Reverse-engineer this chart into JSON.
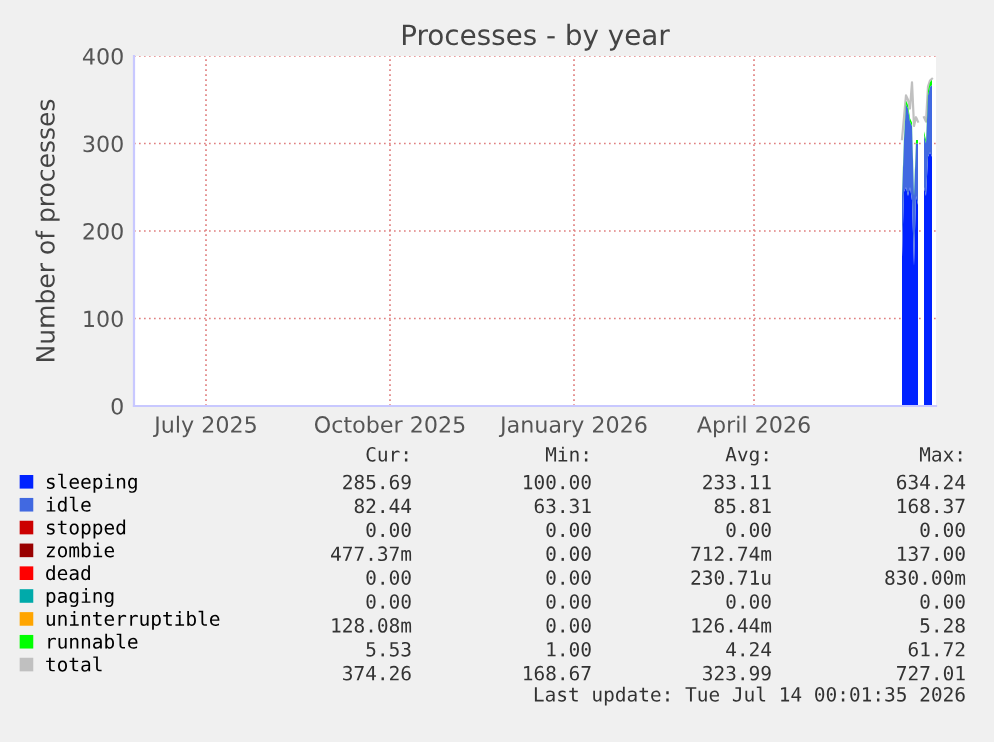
{
  "chart_data": {
    "type": "area",
    "stacked": true,
    "title": "Processes - by year",
    "ylabel": "Number of processes",
    "x": [
      "2026-06-14",
      "2026-06-15",
      "2026-06-16",
      "2026-06-17",
      "2026-06-18",
      "2026-06-19",
      "2026-06-20",
      "2026-06-21",
      "2026-06-22",
      "2026-06-23",
      "2026-06-24",
      "2026-06-25",
      "2026-06-26",
      "2026-06-27",
      "2026-06-28",
      "2026-06-29"
    ],
    "series": [
      {
        "name": "sleeping",
        "color": "#0022ff",
        "values": [
          170,
          245,
          250,
          240,
          250,
          235,
          160,
          240,
          230,
          null,
          null,
          250,
          240,
          285,
          290,
          285
        ]
      },
      {
        "name": "idle",
        "color": "#4169e1",
        "values": [
          70,
          60,
          95,
          100,
          75,
          85,
          80,
          60,
          70,
          null,
          null,
          60,
          60,
          70,
          75,
          82
        ]
      },
      {
        "name": "stopped",
        "color": "#cc0000",
        "values": [
          null,
          null,
          null,
          null,
          null,
          null,
          null,
          null,
          null,
          null,
          null,
          null,
          null,
          null,
          null,
          null
        ]
      },
      {
        "name": "zombie",
        "color": "#990000",
        "values": [
          null,
          null,
          null,
          null,
          null,
          null,
          null,
          null,
          null,
          null,
          null,
          null,
          null,
          null,
          null,
          null
        ]
      },
      {
        "name": "dead",
        "color": "#ff0000",
        "values": [
          null,
          null,
          null,
          null,
          null,
          null,
          null,
          null,
          null,
          null,
          null,
          null,
          null,
          null,
          null,
          null
        ]
      },
      {
        "name": "paging",
        "color": "#00aaaa",
        "values": [
          null,
          null,
          null,
          null,
          null,
          null,
          null,
          null,
          null,
          null,
          null,
          null,
          null,
          null,
          null,
          null
        ]
      },
      {
        "name": "uninterruptible",
        "color": "#ffa500",
        "values": [
          null,
          null,
          null,
          null,
          null,
          null,
          null,
          null,
          null,
          null,
          null,
          null,
          null,
          null,
          null,
          null
        ]
      },
      {
        "name": "runnable",
        "color": "#00ff00",
        "values": [
          4,
          4,
          4,
          4,
          4,
          4,
          4,
          4,
          4,
          null,
          null,
          4,
          4,
          5,
          5,
          6
        ]
      },
      {
        "name": "total",
        "type": "line",
        "color": "#c0c0c0",
        "values": [
          305,
          330,
          355,
          350,
          340,
          370,
          320,
          330,
          325,
          null,
          null,
          330,
          325,
          365,
          372,
          374
        ]
      }
    ],
    "xlim": [
      "2025-05-26",
      "2026-07-01"
    ],
    "xticks": [
      {
        "value": "2025-07-01",
        "label": "July 2025"
      },
      {
        "value": "2025-10-01",
        "label": "October 2025"
      },
      {
        "value": "2026-01-01",
        "label": "January 2026"
      },
      {
        "value": "2026-04-01",
        "label": "April 2026"
      }
    ],
    "ylim": [
      0,
      400
    ],
    "yticks": [
      0,
      100,
      200,
      300,
      400
    ],
    "grid": true,
    "legend": "bottom",
    "annotations": [
      "Cur:",
      "Min:",
      "Avg:",
      "Max:",
      "285.69",
      "100.00",
      "233.11",
      "634.24",
      "82.44",
      "63.31",
      "85.81",
      "168.37",
      "0.00",
      "0.00",
      "0.00",
      "0.00",
      "477.37m",
      "0.00",
      "712.74m",
      "137.00",
      "0.00",
      "0.00",
      "230.71u",
      "830.00m",
      "0.00",
      "0.00",
      "0.00",
      "0.00",
      "128.08m",
      "0.00",
      "126.44m",
      "5.28",
      "5.53",
      "1.00",
      "4.24",
      "61.72",
      "374.26",
      "168.67",
      "323.99",
      "727.01",
      "Last update: Tue Jul 14 00:01:35 2026"
    ]
  }
}
